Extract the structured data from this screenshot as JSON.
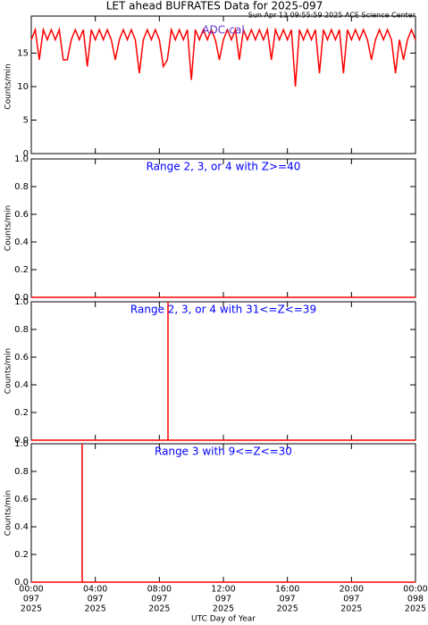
{
  "title": "LET ahead BUFRATES Data for 2025-097",
  "subtitle": "Sun Apr 13 09:55:59 2025 ACE Science Center",
  "chart_data": [
    {
      "type": "line",
      "ylabel": "Counts/min",
      "annotation": "ADC-cal",
      "annotation_color": "#6633cc",
      "xlim": [
        0,
        24
      ],
      "ylim": [
        0,
        20
      ],
      "yticks": [
        0,
        5,
        10,
        15
      ],
      "series": [
        {
          "color": "#ff0000",
          "x": [
            0,
            0.25,
            0.5,
            0.75,
            1,
            1.25,
            1.5,
            1.75,
            2,
            2.25,
            2.5,
            2.75,
            3,
            3.25,
            3.5,
            3.75,
            4,
            4.25,
            4.5,
            4.75,
            5,
            5.25,
            5.5,
            5.75,
            6,
            6.25,
            6.5,
            6.75,
            7,
            7.25,
            7.5,
            7.75,
            8,
            8.25,
            8.5,
            8.75,
            9,
            9.25,
            9.5,
            9.75,
            10,
            10.25,
            10.5,
            10.75,
            11,
            11.25,
            11.5,
            11.75,
            12,
            12.25,
            12.5,
            12.75,
            13,
            13.25,
            13.5,
            13.75,
            14,
            14.25,
            14.5,
            14.75,
            15,
            15.25,
            15.5,
            15.75,
            16,
            16.25,
            16.5,
            16.75,
            17,
            17.25,
            17.5,
            17.75,
            18,
            18.25,
            18.5,
            18.75,
            19,
            19.25,
            19.5,
            19.75,
            20,
            20.25,
            20.5,
            20.75,
            21,
            21.25,
            21.5,
            21.75,
            22,
            22.25,
            22.5,
            22.75,
            23,
            23.25,
            23.5,
            23.75,
            24
          ],
          "values": [
            17,
            18.5,
            14,
            18.5,
            17,
            18.5,
            17,
            18.5,
            14,
            14,
            17,
            18.5,
            17,
            18.5,
            13,
            18.5,
            17,
            18.5,
            17,
            18.5,
            17,
            14,
            17,
            18.5,
            17,
            18.5,
            17,
            12,
            17,
            18.5,
            17,
            18.5,
            17,
            13,
            14,
            18.5,
            17,
            18.5,
            17,
            18.5,
            11,
            18.5,
            17,
            18.5,
            17,
            18.5,
            17,
            14,
            17,
            18.5,
            17,
            18.5,
            14,
            18.5,
            17,
            18.5,
            17,
            18.5,
            17,
            18.5,
            14,
            18.5,
            17,
            18.5,
            17,
            18.5,
            10,
            18.5,
            17,
            18.5,
            17,
            18.5,
            12,
            18.5,
            17,
            18.5,
            17,
            18.5,
            12,
            18.5,
            17,
            18.5,
            17,
            18.5,
            17,
            14,
            17,
            18.5,
            17,
            18.5,
            17,
            12,
            17,
            14,
            17,
            18.5,
            17
          ]
        }
      ]
    },
    {
      "type": "line",
      "ylabel": "Counts/min",
      "annotation": "Range 2, 3, or 4 with Z>=40",
      "annotation_color": "#0000ff",
      "xlim": [
        0,
        24
      ],
      "ylim": [
        0,
        1
      ],
      "yticks": [
        {
          "value": 0,
          "label": "0.0"
        },
        {
          "value": 0.2,
          "label": "0.2"
        },
        {
          "value": 0.4,
          "label": "0.4"
        },
        {
          "value": 0.6,
          "label": "0.6"
        },
        {
          "value": 0.8,
          "label": "0.8"
        },
        {
          "value": 1,
          "label": "1.0"
        }
      ],
      "series": [
        {
          "color": "#ff0000",
          "x": [
            0,
            24
          ],
          "values": [
            0,
            0
          ]
        }
      ]
    },
    {
      "type": "line",
      "ylabel": "Counts/min",
      "annotation": "Range 2, 3, or 4 with 31<=Z<=39",
      "annotation_color": "#0000ff",
      "xlim": [
        0,
        24
      ],
      "ylim": [
        0,
        1
      ],
      "yticks": [
        {
          "value": 0,
          "label": "0.0"
        },
        {
          "value": 0.2,
          "label": "0.2"
        },
        {
          "value": 0.4,
          "label": "0.4"
        },
        {
          "value": 0.6,
          "label": "0.6"
        },
        {
          "value": 0.8,
          "label": "0.8"
        },
        {
          "value": 1,
          "label": "1.0"
        }
      ],
      "series": [
        {
          "color": "#ff0000",
          "x": [
            0,
            8.54,
            8.54,
            8.54,
            24
          ],
          "values": [
            0,
            0,
            1,
            0,
            0
          ]
        }
      ]
    },
    {
      "type": "line",
      "ylabel": "Counts/min",
      "annotation": "Range 3 with 9<=Z<=30",
      "annotation_color": "#0000ff",
      "xlim": [
        0,
        24
      ],
      "ylim": [
        0,
        1
      ],
      "yticks": [
        {
          "value": 0,
          "label": "0.0"
        },
        {
          "value": 0.2,
          "label": "0.2"
        },
        {
          "value": 0.4,
          "label": "0.4"
        },
        {
          "value": 0.6,
          "label": "0.6"
        },
        {
          "value": 0.8,
          "label": "0.8"
        },
        {
          "value": 1,
          "label": "1.0"
        }
      ],
      "series": [
        {
          "color": "#ff0000",
          "x": [
            0,
            3.18,
            3.18,
            3.18,
            24
          ],
          "values": [
            0,
            0,
            1,
            0,
            0
          ]
        }
      ],
      "xlabel": "UTC Day of Year",
      "xticks": [
        {
          "value": 0,
          "label": [
            "00:00",
            "097",
            "2025"
          ]
        },
        {
          "value": 4,
          "label": [
            "04:00",
            "097",
            "2025"
          ]
        },
        {
          "value": 8,
          "label": [
            "08:00",
            "097",
            "2025"
          ]
        },
        {
          "value": 12,
          "label": [
            "12:00",
            "097",
            "2025"
          ]
        },
        {
          "value": 16,
          "label": [
            "16:00",
            "097",
            "2025"
          ]
        },
        {
          "value": 20,
          "label": [
            "20:00",
            "097",
            "2025"
          ]
        },
        {
          "value": 24,
          "label": [
            "00:00",
            "098",
            "2025"
          ]
        }
      ]
    }
  ]
}
